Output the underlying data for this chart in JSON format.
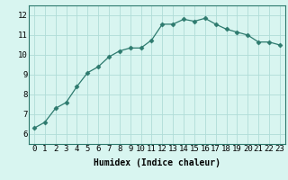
{
  "x": [
    0,
    1,
    2,
    3,
    4,
    5,
    6,
    7,
    8,
    9,
    10,
    11,
    12,
    13,
    14,
    15,
    16,
    17,
    18,
    19,
    20,
    21,
    22,
    23
  ],
  "y": [
    6.3,
    6.6,
    7.3,
    7.6,
    8.4,
    9.1,
    9.4,
    9.9,
    10.2,
    10.35,
    10.35,
    10.75,
    11.55,
    11.55,
    11.8,
    11.7,
    11.85,
    11.55,
    11.3,
    11.15,
    11.0,
    10.65,
    10.65,
    10.5
  ],
  "line_color": "#2d7a6e",
  "marker": "D",
  "marker_size": 2.5,
  "bg_color": "#d8f5f0",
  "grid_color": "#b0ddd8",
  "xlabel": "Humidex (Indice chaleur)",
  "ylim": [
    5.5,
    12.5
  ],
  "xlim": [
    -0.5,
    23.5
  ],
  "yticks": [
    6,
    7,
    8,
    9,
    10,
    11,
    12
  ],
  "xticks": [
    0,
    1,
    2,
    3,
    4,
    5,
    6,
    7,
    8,
    9,
    10,
    11,
    12,
    13,
    14,
    15,
    16,
    17,
    18,
    19,
    20,
    21,
    22,
    23
  ],
  "xtick_labels": [
    "0",
    "1",
    "2",
    "3",
    "4",
    "5",
    "6",
    "7",
    "8",
    "9",
    "10",
    "11",
    "12",
    "13",
    "14",
    "15",
    "16",
    "17",
    "18",
    "19",
    "20",
    "21",
    "22",
    "23"
  ],
  "xlabel_fontsize": 7,
  "tick_fontsize": 6.5
}
